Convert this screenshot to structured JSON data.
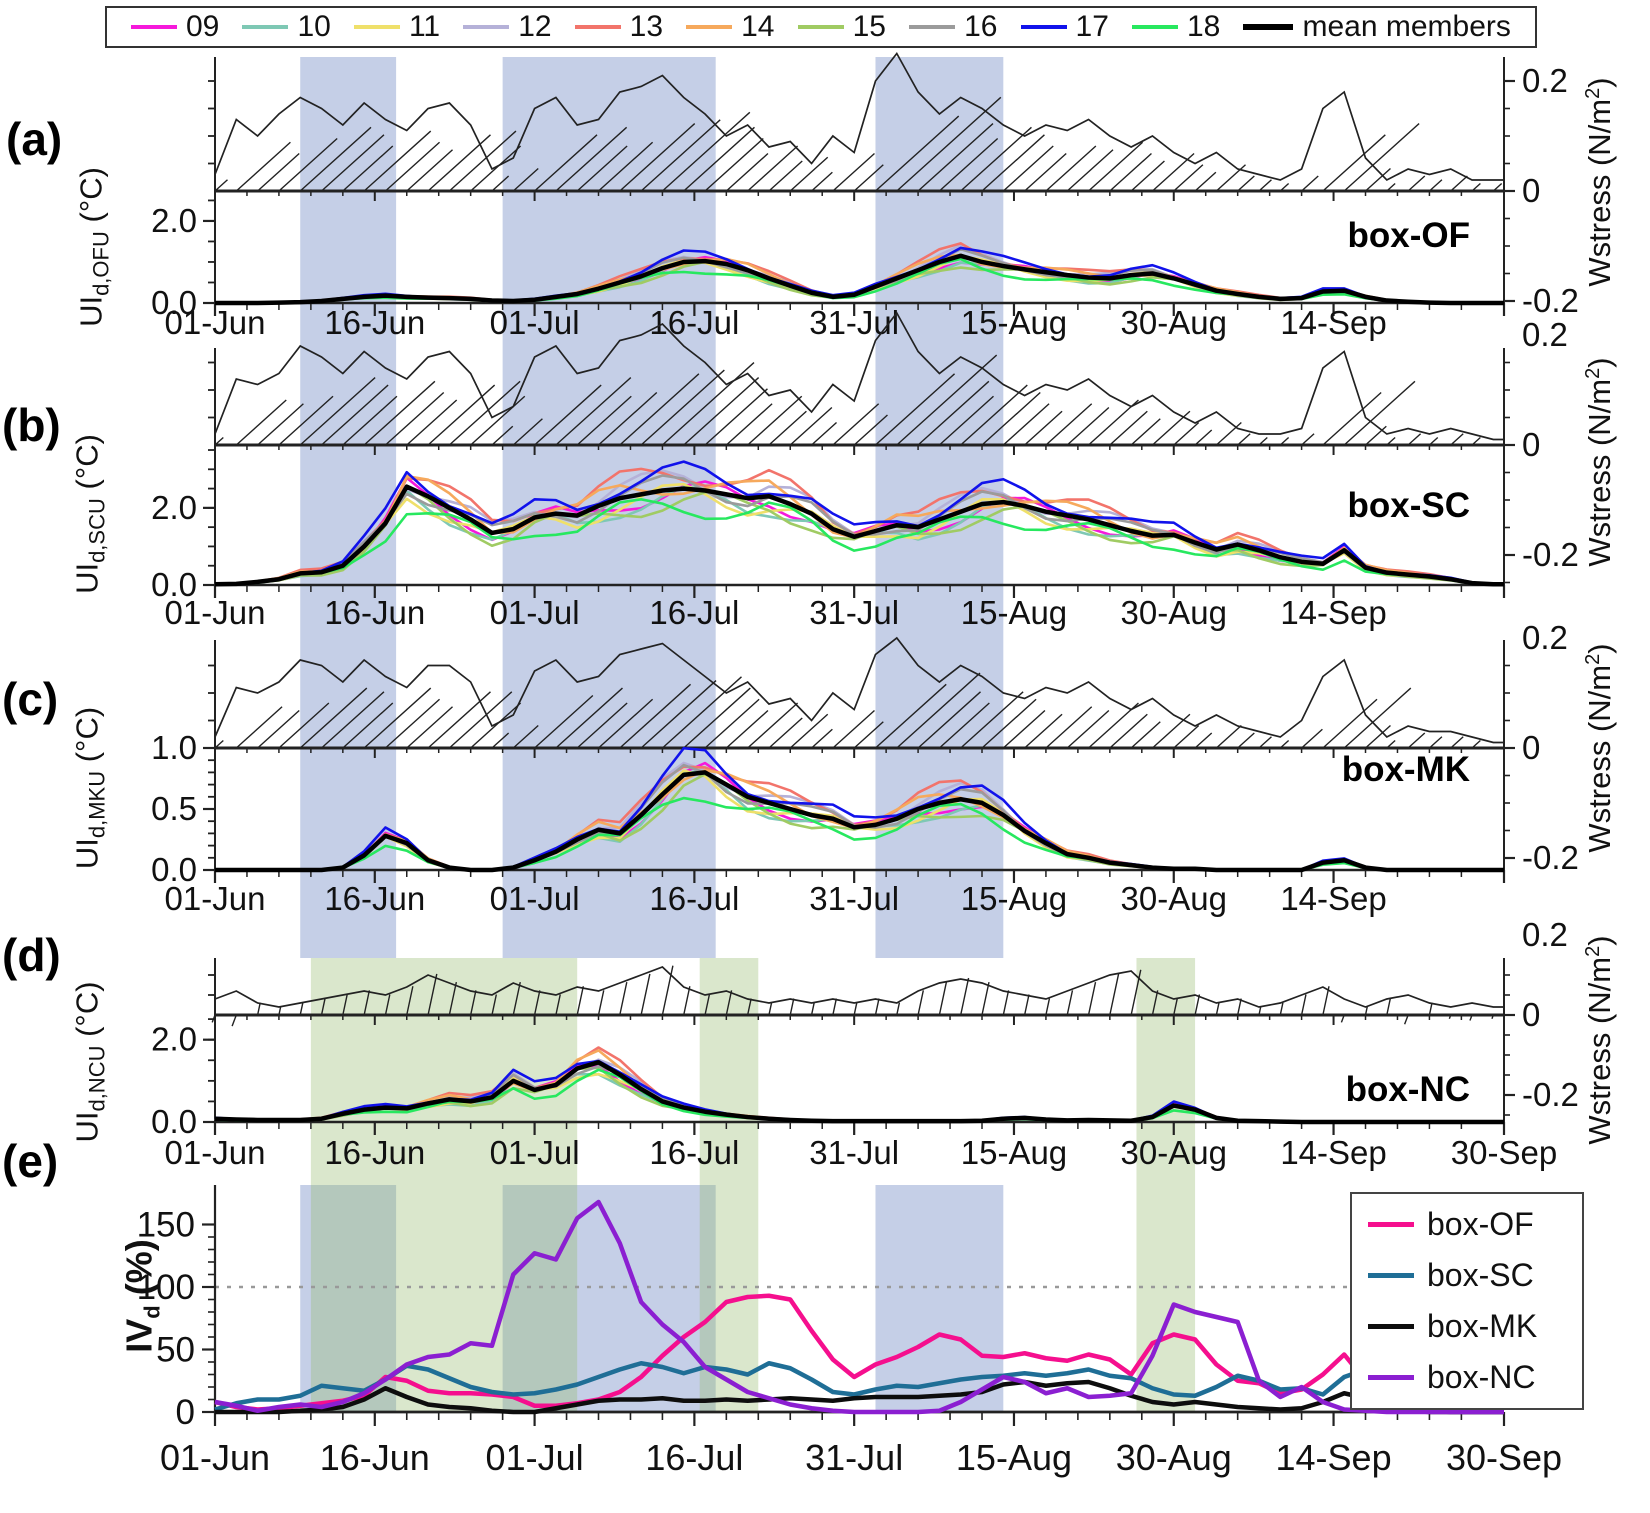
{
  "figure": {
    "panels_letters": [
      "(a)",
      "(b)",
      "(c)",
      "(d)",
      "(e)"
    ],
    "background": "#ffffff"
  },
  "legend": {
    "mean_label": "mean members",
    "mean_color": "#000000"
  },
  "members": [
    {
      "id": "09",
      "color": "#F619DB",
      "factor": 0.97,
      "phase": 0.6
    },
    {
      "id": "10",
      "color": "#7EC8B4",
      "factor": 0.9,
      "phase": 1.3
    },
    {
      "id": "11",
      "color": "#EFE06A",
      "factor": 0.93,
      "phase": 2.2
    },
    {
      "id": "12",
      "color": "#B5B1D8",
      "factor": 1.1,
      "phase": 3.1
    },
    {
      "id": "13",
      "color": "#F2746B",
      "factor": 1.18,
      "phase": 4.1
    },
    {
      "id": "14",
      "color": "#F6A95C",
      "factor": 1.07,
      "phase": 5.2
    },
    {
      "id": "15",
      "color": "#A0CB63",
      "factor": 0.88,
      "phase": 0.2
    },
    {
      "id": "16",
      "color": "#9B9B9B",
      "factor": 1.03,
      "phase": 2.7
    },
    {
      "id": "17",
      "color": "#1112EB",
      "factor": 1.15,
      "phase": 1.8
    },
    {
      "id": "18",
      "color": "#27E85F",
      "factor": 0.83,
      "phase": 3.9
    }
  ],
  "time_axis": {
    "tick_labels": [
      "01-Jun",
      "16-Jun",
      "01-Jul",
      "16-Jul",
      "31-Jul",
      "15-Aug",
      "30-Aug",
      "14-Sep",
      "30-Sep"
    ],
    "tick_days": [
      0,
      15,
      30,
      45,
      60,
      75,
      90,
      105,
      121
    ],
    "minor_step_days": 3,
    "day_step": 2,
    "n_points": 61
  },
  "right_axis": {
    "title_prefix": "Wstress (N/m",
    "title_sup": "2",
    "title_suffix": ")",
    "tick_labels": [
      "0.2",
      "0",
      "-0.2"
    ]
  },
  "bands": {
    "blue_color": "rgba(110,135,195,0.40)",
    "green_color": "rgba(150,185,110,0.35)",
    "blue_day_ranges": [
      [
        8,
        17
      ],
      [
        27,
        47
      ],
      [
        62,
        74
      ]
    ],
    "green_day_ranges": [
      [
        9,
        34
      ],
      [
        45.5,
        51
      ],
      [
        86.5,
        92
      ]
    ]
  },
  "chart_data": [
    {
      "id": "a",
      "letter": "(a)",
      "type": "line",
      "box_label": "box-OF",
      "ylabel_prefix": "UI",
      "ylabel_sub": "d,OFU",
      "ylabel_unit": "(°C)",
      "ymax": 2.73,
      "yticks": [
        {
          "v": 0,
          "label": "0.0"
        },
        {
          "v": 2,
          "label": "2.0"
        }
      ],
      "yminor": 0.5,
      "wstress": [
        0.03,
        0.13,
        0.1,
        0.14,
        0.17,
        0.15,
        0.12,
        0.16,
        0.13,
        0.11,
        0.15,
        0.16,
        0.12,
        0.04,
        0.06,
        0.15,
        0.17,
        0.12,
        0.13,
        0.18,
        0.19,
        0.21,
        0.17,
        0.14,
        0.1,
        0.12,
        0.08,
        0.09,
        0.05,
        0.1,
        0.07,
        0.2,
        0.25,
        0.18,
        0.14,
        0.17,
        0.15,
        0.12,
        0.1,
        0.12,
        0.11,
        0.13,
        0.1,
        0.08,
        0.1,
        0.07,
        0.05,
        0.07,
        0.04,
        0.03,
        0.02,
        0.04,
        0.15,
        0.18,
        0.06,
        0.02,
        0.04,
        0.03,
        0.04,
        0.02,
        0.02
      ],
      "ui_mean": [
        0,
        0,
        0,
        0.01,
        0.02,
        0.05,
        0.1,
        0.15,
        0.18,
        0.15,
        0.13,
        0.12,
        0.1,
        0.06,
        0.05,
        0.08,
        0.15,
        0.22,
        0.35,
        0.5,
        0.65,
        0.85,
        1.0,
        1.02,
        0.95,
        0.8,
        0.6,
        0.42,
        0.25,
        0.15,
        0.2,
        0.4,
        0.6,
        0.8,
        1.0,
        1.15,
        1.0,
        0.9,
        0.82,
        0.75,
        0.68,
        0.62,
        0.6,
        0.68,
        0.72,
        0.6,
        0.45,
        0.3,
        0.22,
        0.15,
        0.1,
        0.12,
        0.28,
        0.3,
        0.15,
        0.06,
        0.03,
        0.01,
        0,
        0,
        0
      ]
    },
    {
      "id": "b",
      "letter": "(b)",
      "type": "line",
      "box_label": "box-SC",
      "ylabel_prefix": "UI",
      "ylabel_sub": "d,SCU",
      "ylabel_unit": "(°C)",
      "ymax": 3.63,
      "yticks": [
        {
          "v": 0,
          "label": "0.0"
        },
        {
          "v": 2,
          "label": "2.0"
        }
      ],
      "yminor": 0.5,
      "wstress": [
        0.02,
        0.12,
        0.11,
        0.13,
        0.18,
        0.16,
        0.13,
        0.17,
        0.14,
        0.12,
        0.16,
        0.17,
        0.13,
        0.05,
        0.07,
        0.16,
        0.18,
        0.13,
        0.14,
        0.19,
        0.2,
        0.22,
        0.18,
        0.15,
        0.11,
        0.13,
        0.09,
        0.1,
        0.06,
        0.11,
        0.08,
        0.19,
        0.24,
        0.17,
        0.13,
        0.16,
        0.14,
        0.11,
        0.09,
        0.11,
        0.1,
        0.12,
        0.09,
        0.07,
        0.09,
        0.06,
        0.04,
        0.06,
        0.03,
        0.02,
        0.02,
        0.03,
        0.14,
        0.17,
        0.05,
        0.02,
        0.03,
        0.02,
        0.03,
        0.02,
        0.01
      ],
      "ui_mean": [
        0.02,
        0.03,
        0.08,
        0.15,
        0.3,
        0.33,
        0.5,
        1.0,
        1.6,
        2.55,
        2.3,
        2.0,
        1.7,
        1.35,
        1.45,
        1.75,
        1.85,
        1.8,
        2.05,
        2.25,
        2.35,
        2.45,
        2.5,
        2.45,
        2.35,
        2.25,
        2.3,
        2.1,
        1.85,
        1.45,
        1.25,
        1.4,
        1.55,
        1.5,
        1.7,
        1.9,
        2.1,
        2.15,
        2.05,
        1.9,
        1.8,
        1.7,
        1.55,
        1.4,
        1.28,
        1.3,
        1.1,
        0.92,
        1.05,
        0.9,
        0.72,
        0.6,
        0.55,
        0.9,
        0.45,
        0.32,
        0.27,
        0.22,
        0.15,
        0.05,
        0.02
      ]
    },
    {
      "id": "c",
      "letter": "(c)",
      "type": "line",
      "box_label": "box-MK",
      "ylabel_prefix": "UI",
      "ylabel_sub": "d,MKU",
      "ylabel_unit": "(°C)",
      "ymax": 1.0,
      "yticks": [
        {
          "v": 0,
          "label": "0.0"
        },
        {
          "v": 0.5,
          "label": "0.5"
        },
        {
          "v": 1,
          "label": "1.0"
        }
      ],
      "yminor": 0.1,
      "wstress": [
        0.02,
        0.11,
        0.1,
        0.12,
        0.16,
        0.15,
        0.12,
        0.16,
        0.13,
        0.11,
        0.15,
        0.15,
        0.12,
        0.04,
        0.06,
        0.14,
        0.16,
        0.12,
        0.13,
        0.17,
        0.18,
        0.19,
        0.16,
        0.13,
        0.1,
        0.12,
        0.08,
        0.09,
        0.05,
        0.1,
        0.07,
        0.17,
        0.2,
        0.15,
        0.12,
        0.15,
        0.13,
        0.1,
        0.09,
        0.11,
        0.1,
        0.12,
        0.09,
        0.07,
        0.09,
        0.06,
        0.04,
        0.06,
        0.04,
        0.03,
        0.02,
        0.05,
        0.13,
        0.16,
        0.06,
        0.02,
        0.04,
        0.03,
        0.03,
        0.02,
        0.01
      ],
      "ui_mean": [
        0,
        0,
        0,
        0,
        0,
        0,
        0.02,
        0.12,
        0.28,
        0.22,
        0.08,
        0.02,
        0,
        0,
        0.02,
        0.08,
        0.15,
        0.25,
        0.33,
        0.3,
        0.45,
        0.62,
        0.78,
        0.8,
        0.7,
        0.6,
        0.55,
        0.5,
        0.45,
        0.42,
        0.35,
        0.37,
        0.42,
        0.5,
        0.55,
        0.58,
        0.55,
        0.45,
        0.32,
        0.22,
        0.13,
        0.1,
        0.06,
        0.04,
        0.02,
        0.01,
        0.01,
        0,
        0,
        0,
        0,
        0,
        0.06,
        0.08,
        0.02,
        0,
        0,
        0,
        0,
        0,
        0
      ]
    },
    {
      "id": "d",
      "letter": "(d)",
      "type": "line",
      "box_label": "box-NC",
      "ylabel_prefix": "UI",
      "ylabel_sub": "d,NCU",
      "ylabel_unit": "(°C)",
      "ymax": 2.6,
      "yticks": [
        {
          "v": 0,
          "label": "0.0"
        },
        {
          "v": 2,
          "label": "2.0"
        }
      ],
      "yminor": 0.5,
      "wstress": [
        0.04,
        0.06,
        0.03,
        0.02,
        0.03,
        0.04,
        0.05,
        0.06,
        0.05,
        0.07,
        0.1,
        0.08,
        0.06,
        0.05,
        0.08,
        0.06,
        0.05,
        0.07,
        0.06,
        0.08,
        0.1,
        0.12,
        0.07,
        0.05,
        0.06,
        0.04,
        0.03,
        0.04,
        0.03,
        0.04,
        0.03,
        0.04,
        0.03,
        0.06,
        0.08,
        0.09,
        0.08,
        0.06,
        0.05,
        0.04,
        0.06,
        0.08,
        0.1,
        0.11,
        0.06,
        0.04,
        0.05,
        0.03,
        0.04,
        0.02,
        0.03,
        0.05,
        0.07,
        0.04,
        0.02,
        0.04,
        0.05,
        0.03,
        0.02,
        0.03,
        0.02
      ],
      "ui_mean": [
        0.08,
        0.06,
        0.05,
        0.05,
        0.05,
        0.08,
        0.2,
        0.3,
        0.35,
        0.33,
        0.45,
        0.55,
        0.5,
        0.6,
        1.0,
        0.78,
        0.9,
        1.3,
        1.45,
        1.15,
        0.8,
        0.5,
        0.35,
        0.25,
        0.18,
        0.12,
        0.08,
        0.05,
        0.03,
        0.02,
        0.02,
        0.02,
        0.02,
        0.02,
        0.02,
        0.02,
        0.03,
        0.08,
        0.1,
        0.06,
        0.04,
        0.05,
        0.04,
        0.03,
        0.12,
        0.4,
        0.3,
        0.1,
        0.03,
        0.02,
        0.01,
        0,
        0,
        0,
        0,
        0,
        0,
        0,
        0,
        0,
        0
      ]
    },
    {
      "id": "e",
      "letter": "(e)",
      "type": "line",
      "ylabel_prefix": "IV",
      "ylabel_sub": "d",
      "ylabel_unit": "(%)",
      "yticks": [
        {
          "v": 0,
          "label": "0"
        },
        {
          "v": 50,
          "label": "50"
        },
        {
          "v": 100,
          "label": "100"
        },
        {
          "v": 150,
          "label": "150"
        }
      ],
      "yminor": 10,
      "ref_line": 100,
      "series": [
        {
          "name": "box-OF",
          "color": "#F50F8E",
          "values": [
            8,
            4,
            2,
            3,
            5,
            7,
            9,
            13,
            28,
            25,
            17,
            15,
            15,
            14,
            12,
            5,
            5,
            7,
            10,
            16,
            28,
            45,
            60,
            72,
            88,
            92,
            93,
            90,
            65,
            42,
            28,
            38,
            44,
            52,
            62,
            58,
            45,
            44,
            47,
            43,
            41,
            46,
            42,
            30,
            55,
            62,
            58,
            38,
            25,
            23,
            15,
            18,
            30,
            46,
            25,
            10,
            3,
            1,
            0,
            0,
            0
          ]
        },
        {
          "name": "box-SC",
          "color": "#1F6E96",
          "values": [
            2,
            7,
            10,
            10,
            13,
            21,
            19,
            17,
            26,
            37,
            34,
            27,
            20,
            16,
            14,
            15,
            18,
            22,
            28,
            34,
            39,
            36,
            31,
            36,
            34,
            30,
            39,
            35,
            26,
            16,
            14,
            18,
            21,
            20,
            23,
            26,
            28,
            29,
            31,
            29,
            31,
            34,
            29,
            27,
            19,
            14,
            13,
            20,
            29,
            25,
            18,
            19,
            14,
            28,
            34,
            15,
            4,
            1,
            0,
            0,
            0
          ]
        },
        {
          "name": "box-MK",
          "color": "#0D0D0D",
          "values": [
            0,
            0,
            0,
            0,
            1,
            2,
            4,
            10,
            19,
            12,
            6,
            4,
            3,
            1,
            0,
            0,
            3,
            6,
            9,
            10,
            10,
            11,
            9,
            9,
            10,
            9,
            10,
            11,
            10,
            9,
            11,
            12,
            12,
            12,
            13,
            14,
            16,
            22,
            24,
            21,
            23,
            24,
            19,
            13,
            8,
            6,
            8,
            6,
            4,
            3,
            2,
            3,
            8,
            15,
            11,
            3,
            1,
            0,
            0,
            0,
            0
          ]
        },
        {
          "name": "box-NC",
          "color": "#8B1FD1",
          "values": [
            8,
            5,
            1,
            4,
            6,
            4,
            8,
            15,
            26,
            38,
            44,
            46,
            55,
            53,
            110,
            127,
            122,
            155,
            168,
            135,
            88,
            70,
            56,
            36,
            26,
            16,
            11,
            6,
            3,
            1,
            0,
            0,
            0,
            0,
            1,
            8,
            18,
            28,
            24,
            15,
            19,
            12,
            13,
            15,
            45,
            86,
            80,
            76,
            72,
            25,
            12,
            20,
            8,
            2,
            1,
            0,
            0,
            0,
            0,
            0,
            0
          ]
        }
      ]
    }
  ]
}
